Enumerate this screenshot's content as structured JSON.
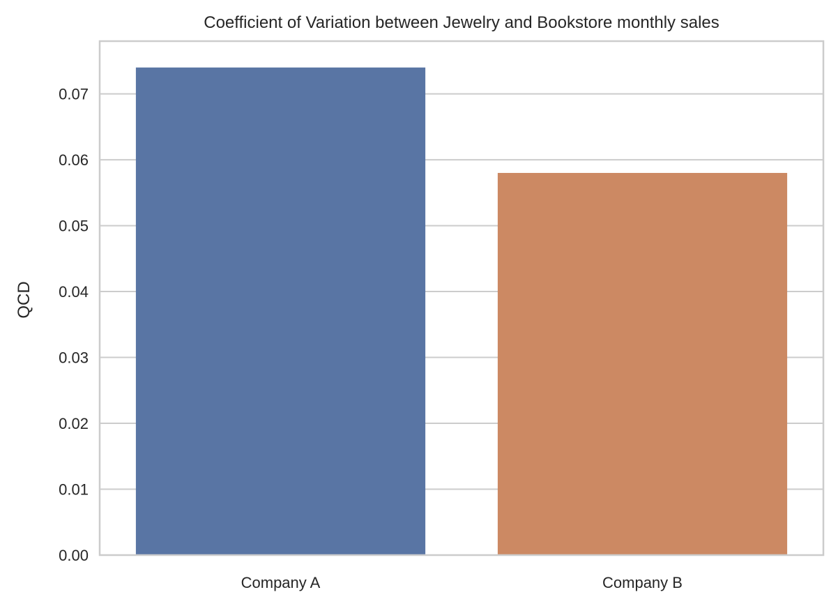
{
  "chart_data": {
    "type": "bar",
    "title": "Coefficient of Variation between Jewelry and Bookstore monthly sales",
    "xlabel": "",
    "ylabel": "QCD",
    "categories": [
      "Company A",
      "Company B"
    ],
    "values": [
      0.074,
      0.058
    ],
    "colors": [
      "#5975a4",
      "#cc8963"
    ],
    "ylim": [
      0,
      0.078
    ],
    "yticks": [
      "0.00",
      "0.01",
      "0.02",
      "0.03",
      "0.04",
      "0.05",
      "0.06",
      "0.07"
    ],
    "grid": true
  }
}
